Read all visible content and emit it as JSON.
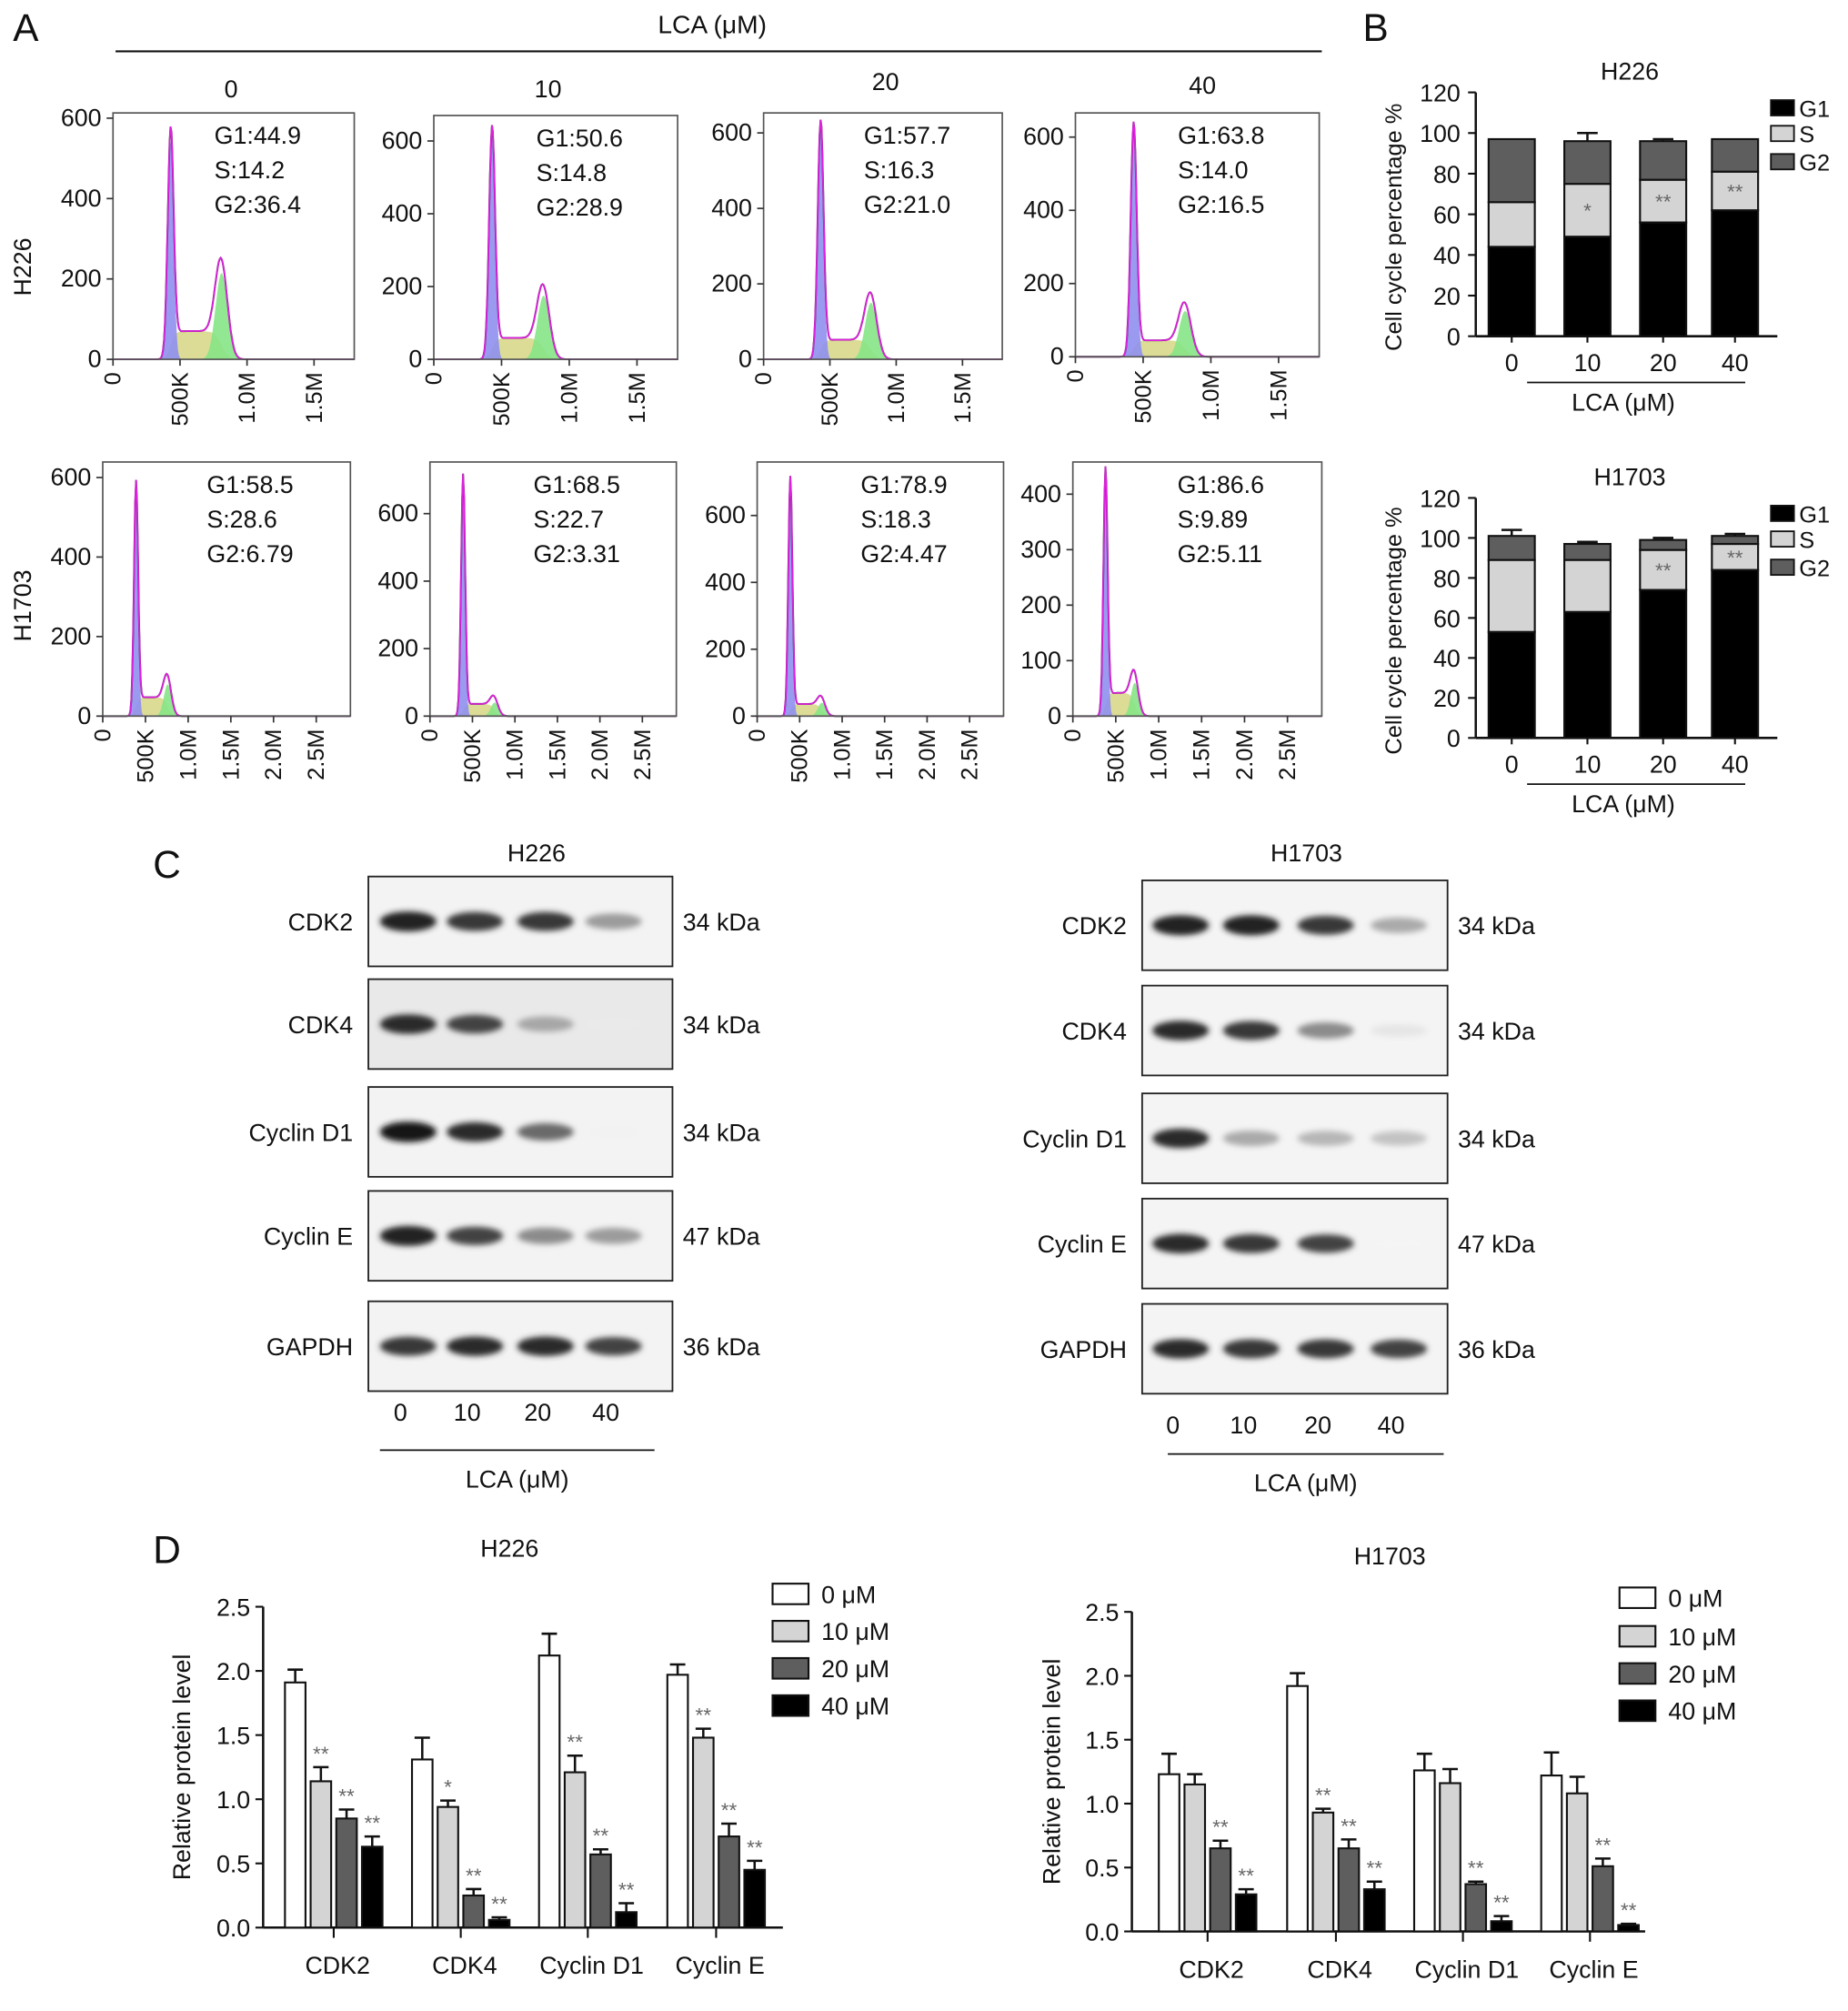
{
  "panel_labels": {
    "a": "A",
    "b": "B",
    "c": "C",
    "d": "D"
  },
  "panel_a": {
    "header": "LCA (μM)",
    "columns": [
      "0",
      "10",
      "20",
      "40"
    ],
    "colors": {
      "g1_fill": "#8f8ff0",
      "s_fill": "#dcdc96",
      "g2_fill": "#86e486",
      "fit_line": "#e020e0",
      "data_line": "#333333"
    },
    "rows": [
      {
        "cell_line": "H226",
        "x_ticks": [
          "0",
          "500K",
          "1.0M",
          "1.5M"
        ],
        "x_tick_values": [
          0,
          500,
          1000,
          1500
        ],
        "x_max": 1800,
        "panels": [
          {
            "g1": "G1:44.9",
            "s": "S:14.2",
            "g2": "G2:36.4",
            "y_ticks": [
              "0",
              "200",
              "400",
              "600"
            ],
            "y_tick_values": [
              0,
              200,
              400,
              600
            ],
            "y_max": 613,
            "g1_pos": 430,
            "g2_pos": 810,
            "g1_peak": 545,
            "g2_peak": 215
          },
          {
            "g1": "G1:50.6",
            "s": "S:14.8",
            "g2": "G2:28.9",
            "y_ticks": [
              "0",
              "200",
              "400",
              "600"
            ],
            "y_tick_values": [
              0,
              200,
              400,
              600
            ],
            "y_max": 670,
            "g1_pos": 430,
            "g2_pos": 810,
            "g1_peak": 615,
            "g2_peak": 175
          },
          {
            "g1": "G1:57.7",
            "s": "S:16.3",
            "g2": "G2:21.0",
            "y_ticks": [
              "0",
              "200",
              "400",
              "600"
            ],
            "y_tick_values": [
              0,
              200,
              400,
              600
            ],
            "y_max": 653,
            "g1_pos": 430,
            "g2_pos": 810,
            "g1_peak": 610,
            "g2_peak": 150
          },
          {
            "g1": "G1:63.8",
            "s": "S:14.0",
            "g2": "G2:16.5",
            "y_ticks": [
              "0",
              "200",
              "400",
              "600"
            ],
            "y_tick_values": [
              0,
              200,
              400,
              600
            ],
            "y_max": 666,
            "g1_pos": 430,
            "g2_pos": 810,
            "g1_peak": 620,
            "g2_peak": 125
          }
        ]
      },
      {
        "cell_line": "H1703",
        "x_ticks": [
          "0",
          "500K",
          "1.0M",
          "1.5M",
          "2.0M",
          "2.5M"
        ],
        "x_tick_values": [
          0,
          500,
          1000,
          1500,
          2000,
          2500
        ],
        "x_max": 2900,
        "panels": [
          {
            "g1": "G1:58.5",
            "s": "S:28.6",
            "g2": "G2:6.79",
            "y_ticks": [
              "0",
              "200",
              "400",
              "600"
            ],
            "y_tick_values": [
              0,
              200,
              400,
              600
            ],
            "y_max": 639,
            "g1_pos": 390,
            "g2_pos": 760,
            "g1_peak": 570,
            "g2_peak": 80
          },
          {
            "g1": "G1:68.5",
            "s": "S:22.7",
            "g2": "G2:3.31",
            "y_ticks": [
              "0",
              "200",
              "400",
              "600"
            ],
            "y_tick_values": [
              0,
              200,
              400,
              600
            ],
            "y_max": 753,
            "g1_pos": 390,
            "g2_pos": 760,
            "g1_peak": 700,
            "g2_peak": 40
          },
          {
            "g1": "G1:78.9",
            "s": "S:18.3",
            "g2": "G2:4.47",
            "y_ticks": [
              "0",
              "200",
              "400",
              "600"
            ],
            "y_tick_values": [
              0,
              200,
              400,
              600
            ],
            "y_max": 760,
            "g1_pos": 390,
            "g2_pos": 760,
            "g1_peak": 700,
            "g2_peak": 40
          },
          {
            "g1": "G1:86.6",
            "s": "S:9.89",
            "g2": "G2:5.11",
            "y_ticks": [
              "0",
              "100",
              "200",
              "300",
              "400"
            ],
            "y_tick_values": [
              0,
              100,
              200,
              300,
              400
            ],
            "y_max": 458,
            "g1_pos": 380,
            "g2_pos": 720,
            "g1_peak": 430,
            "g2_peak": 60
          }
        ]
      }
    ]
  },
  "panel_c": {
    "xlabel": "LCA (μM)",
    "lanes": [
      "0",
      "10",
      "20",
      "40"
    ],
    "blots": [
      {
        "cell_line": "H226",
        "rows": [
          {
            "protein": "CDK2",
            "size": "34 kDa",
            "intensity": [
              0.95,
              0.85,
              0.85,
              0.55
            ]
          },
          {
            "protein": "CDK4",
            "size": "34 kDa",
            "intensity": [
              0.9,
              0.8,
              0.5,
              0.08
            ]
          },
          {
            "protein": "Cyclin D1",
            "size": "34 kDa",
            "intensity": [
              1.0,
              0.9,
              0.7,
              0.06
            ]
          },
          {
            "protein": "Cyclin E",
            "size": "47 kDa",
            "intensity": [
              0.95,
              0.8,
              0.6,
              0.55
            ]
          },
          {
            "protein": "GAPDH",
            "size": "36 kDa",
            "intensity": [
              0.85,
              0.9,
              0.9,
              0.8
            ]
          }
        ]
      },
      {
        "cell_line": "H1703",
        "rows": [
          {
            "protein": "CDK2",
            "size": "34 kDa",
            "intensity": [
              0.95,
              0.95,
              0.85,
              0.5
            ]
          },
          {
            "protein": "CDK4",
            "size": "34 kDa",
            "intensity": [
              0.9,
              0.85,
              0.6,
              0.2
            ]
          },
          {
            "protein": "Cyclin D1",
            "size": "34 kDa",
            "intensity": [
              0.9,
              0.5,
              0.45,
              0.4
            ]
          },
          {
            "protein": "Cyclin E",
            "size": "47 kDa",
            "intensity": [
              0.9,
              0.85,
              0.8,
              0.03
            ]
          },
          {
            "protein": "GAPDH",
            "size": "36 kDa",
            "intensity": [
              0.9,
              0.85,
              0.85,
              0.8
            ]
          }
        ]
      }
    ]
  },
  "chart_data": [
    {
      "panel": "B",
      "type": "bar",
      "stacked": true,
      "title": "H226",
      "categories": [
        "0",
        "10",
        "20",
        "40"
      ],
      "xlabel": "LCA (μM)",
      "ylabel": "Cell cycle percentage %",
      "ylim": [
        0,
        120
      ],
      "y_ticks": [
        "0",
        "20",
        "40",
        "60",
        "80",
        "100",
        "120"
      ],
      "legend": "top-right",
      "series": [
        {
          "name": "G1",
          "values": [
            44,
            49,
            56,
            62
          ],
          "errors": [
            1,
            1,
            1,
            1
          ],
          "color": "#000000"
        },
        {
          "name": "S",
          "values": [
            22,
            26,
            21,
            19
          ],
          "errors": [
            1,
            7,
            3,
            3
          ],
          "color": "#d4d4d4"
        },
        {
          "name": "G2",
          "values": [
            31,
            21,
            19,
            16
          ],
          "errors": [
            0,
            4,
            1,
            0
          ],
          "color": "#5e5e5e"
        }
      ],
      "significance": [
        "",
        "*",
        "**",
        "**"
      ]
    },
    {
      "panel": "B",
      "type": "bar",
      "stacked": true,
      "title": "H1703",
      "categories": [
        "0",
        "10",
        "20",
        "40"
      ],
      "xlabel": "LCA (μM)",
      "ylabel": "Cell cycle percentage %",
      "ylim": [
        0,
        120
      ],
      "y_ticks": [
        "0",
        "20",
        "40",
        "60",
        "80",
        "100",
        "120"
      ],
      "legend": "top-right",
      "series": [
        {
          "name": "G1",
          "values": [
            53,
            63,
            74,
            84
          ],
          "errors": [
            2,
            2,
            4,
            1
          ],
          "color": "#000000"
        },
        {
          "name": "S",
          "values": [
            36,
            26,
            20,
            13
          ],
          "errors": [
            3,
            3,
            1,
            1
          ],
          "color": "#d4d4d4"
        },
        {
          "name": "G2",
          "values": [
            12,
            8,
            5,
            4
          ],
          "errors": [
            3,
            1,
            1,
            1
          ],
          "color": "#5e5e5e"
        }
      ],
      "significance": [
        "",
        "",
        "**",
        "**"
      ]
    },
    {
      "panel": "D",
      "type": "bar",
      "title": "H226",
      "categories": [
        "CDK2",
        "CDK4",
        "Cyclin D1",
        "Cyclin E"
      ],
      "xlabel": "",
      "ylabel": "Relative protein level",
      "ylim": [
        0,
        2.5
      ],
      "y_ticks": [
        "0.0",
        "0.5",
        "1.0",
        "1.5",
        "2.0",
        "2.5"
      ],
      "legend": "top-right",
      "series": [
        {
          "name": "0 μM",
          "values": [
            1.91,
            1.31,
            2.12,
            1.97
          ],
          "errors": [
            0.1,
            0.17,
            0.17,
            0.08
          ],
          "significance": [
            "",
            "",
            "",
            ""
          ],
          "color": "#ffffff"
        },
        {
          "name": "10 μM",
          "values": [
            1.14,
            0.94,
            1.21,
            1.48
          ],
          "errors": [
            0.11,
            0.05,
            0.13,
            0.07
          ],
          "significance": [
            "**",
            "*",
            "**",
            "**"
          ],
          "color": "#d4d4d4"
        },
        {
          "name": "20 μM",
          "values": [
            0.85,
            0.25,
            0.57,
            0.71
          ],
          "errors": [
            0.07,
            0.05,
            0.04,
            0.1
          ],
          "significance": [
            "**",
            "**",
            "**",
            "**"
          ],
          "color": "#5e5e5e"
        },
        {
          "name": "40 μM",
          "values": [
            0.63,
            0.06,
            0.12,
            0.45
          ],
          "errors": [
            0.08,
            0.02,
            0.07,
            0.07
          ],
          "significance": [
            "**",
            "**",
            "**",
            "**"
          ],
          "color": "#000000"
        }
      ]
    },
    {
      "panel": "D",
      "type": "bar",
      "title": "H1703",
      "categories": [
        "CDK2",
        "CDK4",
        "Cyclin D1",
        "Cyclin E"
      ],
      "xlabel": "",
      "ylabel": "Relative protein level",
      "ylim": [
        0,
        2.5
      ],
      "y_ticks": [
        "0.0",
        "0.5",
        "1.0",
        "1.5",
        "2.0",
        "2.5"
      ],
      "legend": "top-right",
      "series": [
        {
          "name": "0 μM",
          "values": [
            1.23,
            1.92,
            1.26,
            1.22
          ],
          "errors": [
            0.16,
            0.1,
            0.13,
            0.18
          ],
          "significance": [
            "",
            "",
            "",
            ""
          ],
          "color": "#ffffff"
        },
        {
          "name": "10 μM",
          "values": [
            1.15,
            0.93,
            1.16,
            1.08
          ],
          "errors": [
            0.08,
            0.03,
            0.11,
            0.13
          ],
          "significance": [
            "",
            "**",
            "",
            ""
          ],
          "color": "#d4d4d4"
        },
        {
          "name": "20 μM",
          "values": [
            0.65,
            0.65,
            0.37,
            0.51
          ],
          "errors": [
            0.06,
            0.07,
            0.02,
            0.06
          ],
          "significance": [
            "**",
            "**",
            "**",
            "**"
          ],
          "color": "#5e5e5e"
        },
        {
          "name": "40 μM",
          "values": [
            0.29,
            0.33,
            0.08,
            0.05
          ],
          "errors": [
            0.04,
            0.06,
            0.04,
            0.01
          ],
          "significance": [
            "**",
            "**",
            "**",
            "**"
          ],
          "color": "#000000"
        }
      ]
    }
  ]
}
